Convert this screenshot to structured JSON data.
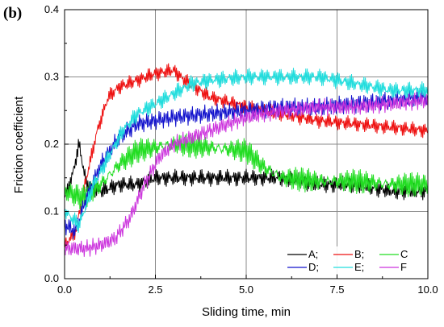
{
  "chart_data": {
    "type": "line",
    "panel_label": "(b)",
    "title": "",
    "xlabel": "Sliding time, min",
    "ylabel": "Friction coefficient",
    "xlim": [
      0,
      10
    ],
    "ylim": [
      0,
      0.4
    ],
    "x_ticks": [
      0,
      2.5,
      5,
      7.5,
      10
    ],
    "x_tick_labels": [
      "0.0",
      "2.5",
      "5.0",
      "7.5",
      "10.0"
    ],
    "y_ticks": [
      0,
      0.1,
      0.2,
      0.3,
      0.4
    ],
    "y_tick_labels": [
      "0.0",
      "0.1",
      "0.2",
      "0.3",
      "0.4"
    ],
    "grid": true,
    "legend_position": "bottom-right",
    "series": [
      {
        "name": "A;",
        "color": "#000000",
        "points": [
          [
            0,
            0.12
          ],
          [
            0.2,
            0.15
          ],
          [
            0.4,
            0.2
          ],
          [
            0.6,
            0.14
          ],
          [
            1,
            0.13
          ],
          [
            1.5,
            0.14
          ],
          [
            2,
            0.14
          ],
          [
            2.5,
            0.15
          ],
          [
            3,
            0.15
          ],
          [
            4,
            0.15
          ],
          [
            5,
            0.15
          ],
          [
            6,
            0.15
          ],
          [
            7,
            0.14
          ],
          [
            8,
            0.14
          ],
          [
            9,
            0.13
          ],
          [
            10,
            0.13
          ]
        ]
      },
      {
        "name": "B;",
        "color": "#ee1111",
        "points": [
          [
            0,
            0.05
          ],
          [
            0.3,
            0.07
          ],
          [
            0.6,
            0.15
          ],
          [
            0.9,
            0.22
          ],
          [
            1.2,
            0.27
          ],
          [
            1.5,
            0.285
          ],
          [
            2,
            0.295
          ],
          [
            2.5,
            0.305
          ],
          [
            3,
            0.31
          ],
          [
            3.3,
            0.295
          ],
          [
            4,
            0.27
          ],
          [
            5,
            0.255
          ],
          [
            6,
            0.245
          ],
          [
            7,
            0.235
          ],
          [
            8,
            0.23
          ],
          [
            9,
            0.225
          ],
          [
            10,
            0.22
          ]
        ]
      },
      {
        "name": "C",
        "color": "#22dd22",
        "points": [
          [
            0,
            0.13
          ],
          [
            0.5,
            0.12
          ],
          [
            1,
            0.14
          ],
          [
            1.5,
            0.17
          ],
          [
            2,
            0.19
          ],
          [
            2.5,
            0.195
          ],
          [
            3,
            0.2
          ],
          [
            4,
            0.195
          ],
          [
            5,
            0.19
          ],
          [
            5.5,
            0.165
          ],
          [
            6,
            0.15
          ],
          [
            7,
            0.145
          ],
          [
            8,
            0.145
          ],
          [
            9,
            0.14
          ],
          [
            10,
            0.14
          ]
        ]
      },
      {
        "name": "D;",
        "color": "#1111cc",
        "points": [
          [
            0,
            0.08
          ],
          [
            0.3,
            0.07
          ],
          [
            0.6,
            0.12
          ],
          [
            1,
            0.17
          ],
          [
            1.5,
            0.21
          ],
          [
            2,
            0.23
          ],
          [
            2.5,
            0.235
          ],
          [
            3,
            0.24
          ],
          [
            4,
            0.245
          ],
          [
            5,
            0.25
          ],
          [
            6,
            0.255
          ],
          [
            7,
            0.255
          ],
          [
            8,
            0.26
          ],
          [
            9,
            0.265
          ],
          [
            10,
            0.27
          ]
        ]
      },
      {
        "name": "E;",
        "color": "#22dddd",
        "points": [
          [
            0,
            0.1
          ],
          [
            0.4,
            0.08
          ],
          [
            0.8,
            0.14
          ],
          [
            1.2,
            0.18
          ],
          [
            1.6,
            0.22
          ],
          [
            2,
            0.245
          ],
          [
            2.5,
            0.26
          ],
          [
            3,
            0.275
          ],
          [
            3.5,
            0.29
          ],
          [
            4,
            0.295
          ],
          [
            5,
            0.3
          ],
          [
            6,
            0.3
          ],
          [
            7,
            0.3
          ],
          [
            8,
            0.29
          ],
          [
            9,
            0.28
          ],
          [
            10,
            0.28
          ]
        ]
      },
      {
        "name": "F",
        "color": "#cc33dd",
        "points": [
          [
            0,
            0.045
          ],
          [
            0.6,
            0.045
          ],
          [
            1,
            0.05
          ],
          [
            1.4,
            0.06
          ],
          [
            1.8,
            0.09
          ],
          [
            2.2,
            0.14
          ],
          [
            2.6,
            0.18
          ],
          [
            3,
            0.2
          ],
          [
            3.5,
            0.21
          ],
          [
            4,
            0.22
          ],
          [
            5,
            0.24
          ],
          [
            6,
            0.25
          ],
          [
            7,
            0.255
          ],
          [
            8,
            0.255
          ],
          [
            9,
            0.26
          ],
          [
            10,
            0.265
          ]
        ]
      }
    ]
  }
}
